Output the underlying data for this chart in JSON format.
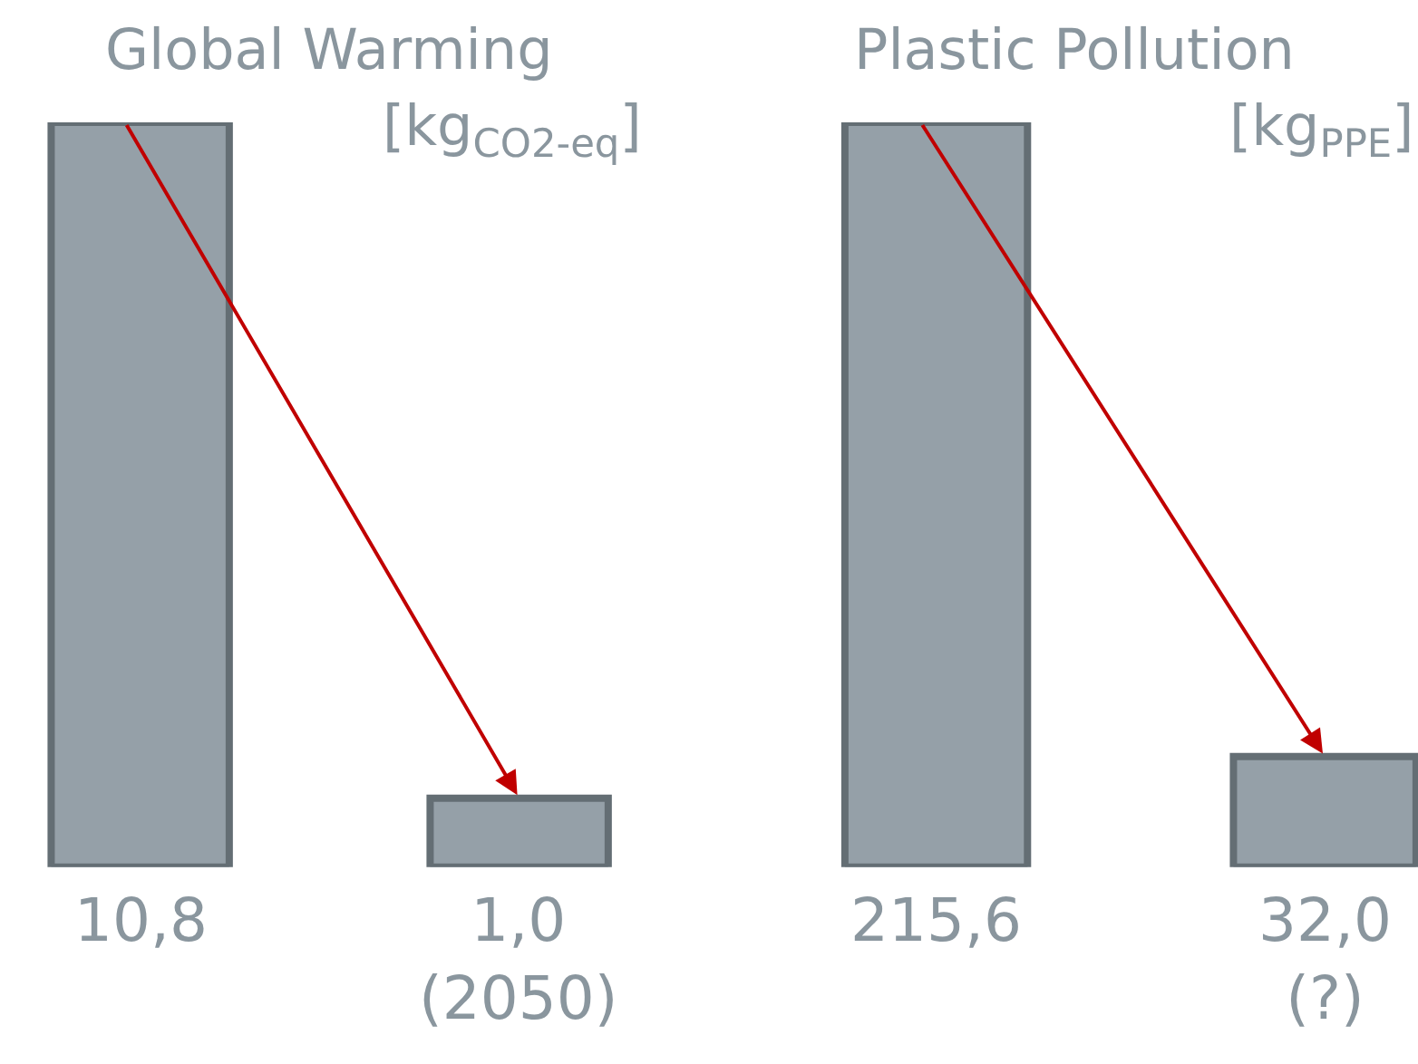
{
  "chart_data": [
    {
      "type": "bar",
      "title": "Global Warming",
      "subtitle": "[kg$_{CO2-eq}$]",
      "categories": [
        null,
        null
      ],
      "values": [
        10.8,
        1.0
      ],
      "color": "#95a0a8",
      "value_labels": [
        "10,8",
        "1,0\n(2050)"
      ]
    },
    {
      "type": "bar",
      "title": "Plastic Pollution",
      "subtitle": "[kg$_{PPE}$]",
      "categories": [
        null,
        null
      ],
      "values": [
        215.6,
        32.0
      ],
      "color": "#95a0a8",
      "value_labels": [
        "215,6",
        "32,0\n(?)"
      ]
    }
  ]
}
